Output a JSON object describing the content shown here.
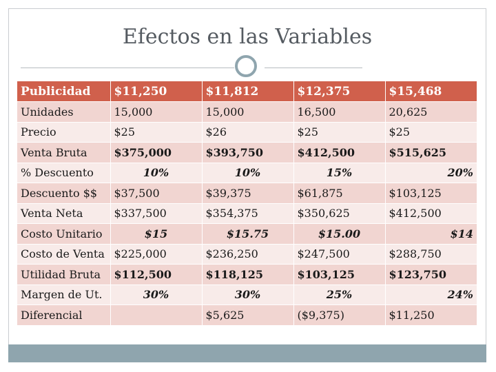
{
  "slide": {
    "title": "Efectos en las Variables"
  },
  "table": {
    "header": {
      "label": "Publicidad",
      "values": [
        "$11,250",
        "$11,812",
        "$12,375",
        "$15,468"
      ]
    },
    "rows": [
      {
        "label": "Unidades",
        "values": [
          "15,000",
          "15,000",
          "16,500",
          "20,625"
        ]
      },
      {
        "label": "Precio",
        "values": [
          "$25",
          "$26",
          "$25",
          "$25"
        ]
      },
      {
        "label": "Venta Bruta",
        "values": [
          "$375,000",
          "$393,750",
          "$412,500",
          "$515,625"
        ]
      },
      {
        "label": "% Descuento",
        "values": [
          "10%",
          "10%",
          "15%",
          "20%"
        ]
      },
      {
        "label": "Descuento $$",
        "values": [
          "$37,500",
          "$39,375",
          "$61,875",
          "$103,125"
        ]
      },
      {
        "label": "Venta Neta",
        "values": [
          "$337,500",
          "$354,375",
          "$350,625",
          "$412,500"
        ]
      },
      {
        "label": "Costo Unitario",
        "values": [
          "$15",
          "$15.75",
          "$15.00",
          "$14"
        ]
      },
      {
        "label": "Costo de Venta",
        "values": [
          "$225,000",
          "$236,250",
          "$247,500",
          "$288,750"
        ]
      },
      {
        "label": "Utilidad Bruta",
        "values": [
          "$112,500",
          "$118,125",
          "$103,125",
          "$123,750"
        ]
      },
      {
        "label": "Margen de Ut.",
        "values": [
          "30%",
          "30%",
          "25%",
          "24%"
        ]
      },
      {
        "label": "Diferencial",
        "values": [
          "",
          "$5,625",
          "($9,375)",
          "$11,250"
        ]
      }
    ]
  }
}
